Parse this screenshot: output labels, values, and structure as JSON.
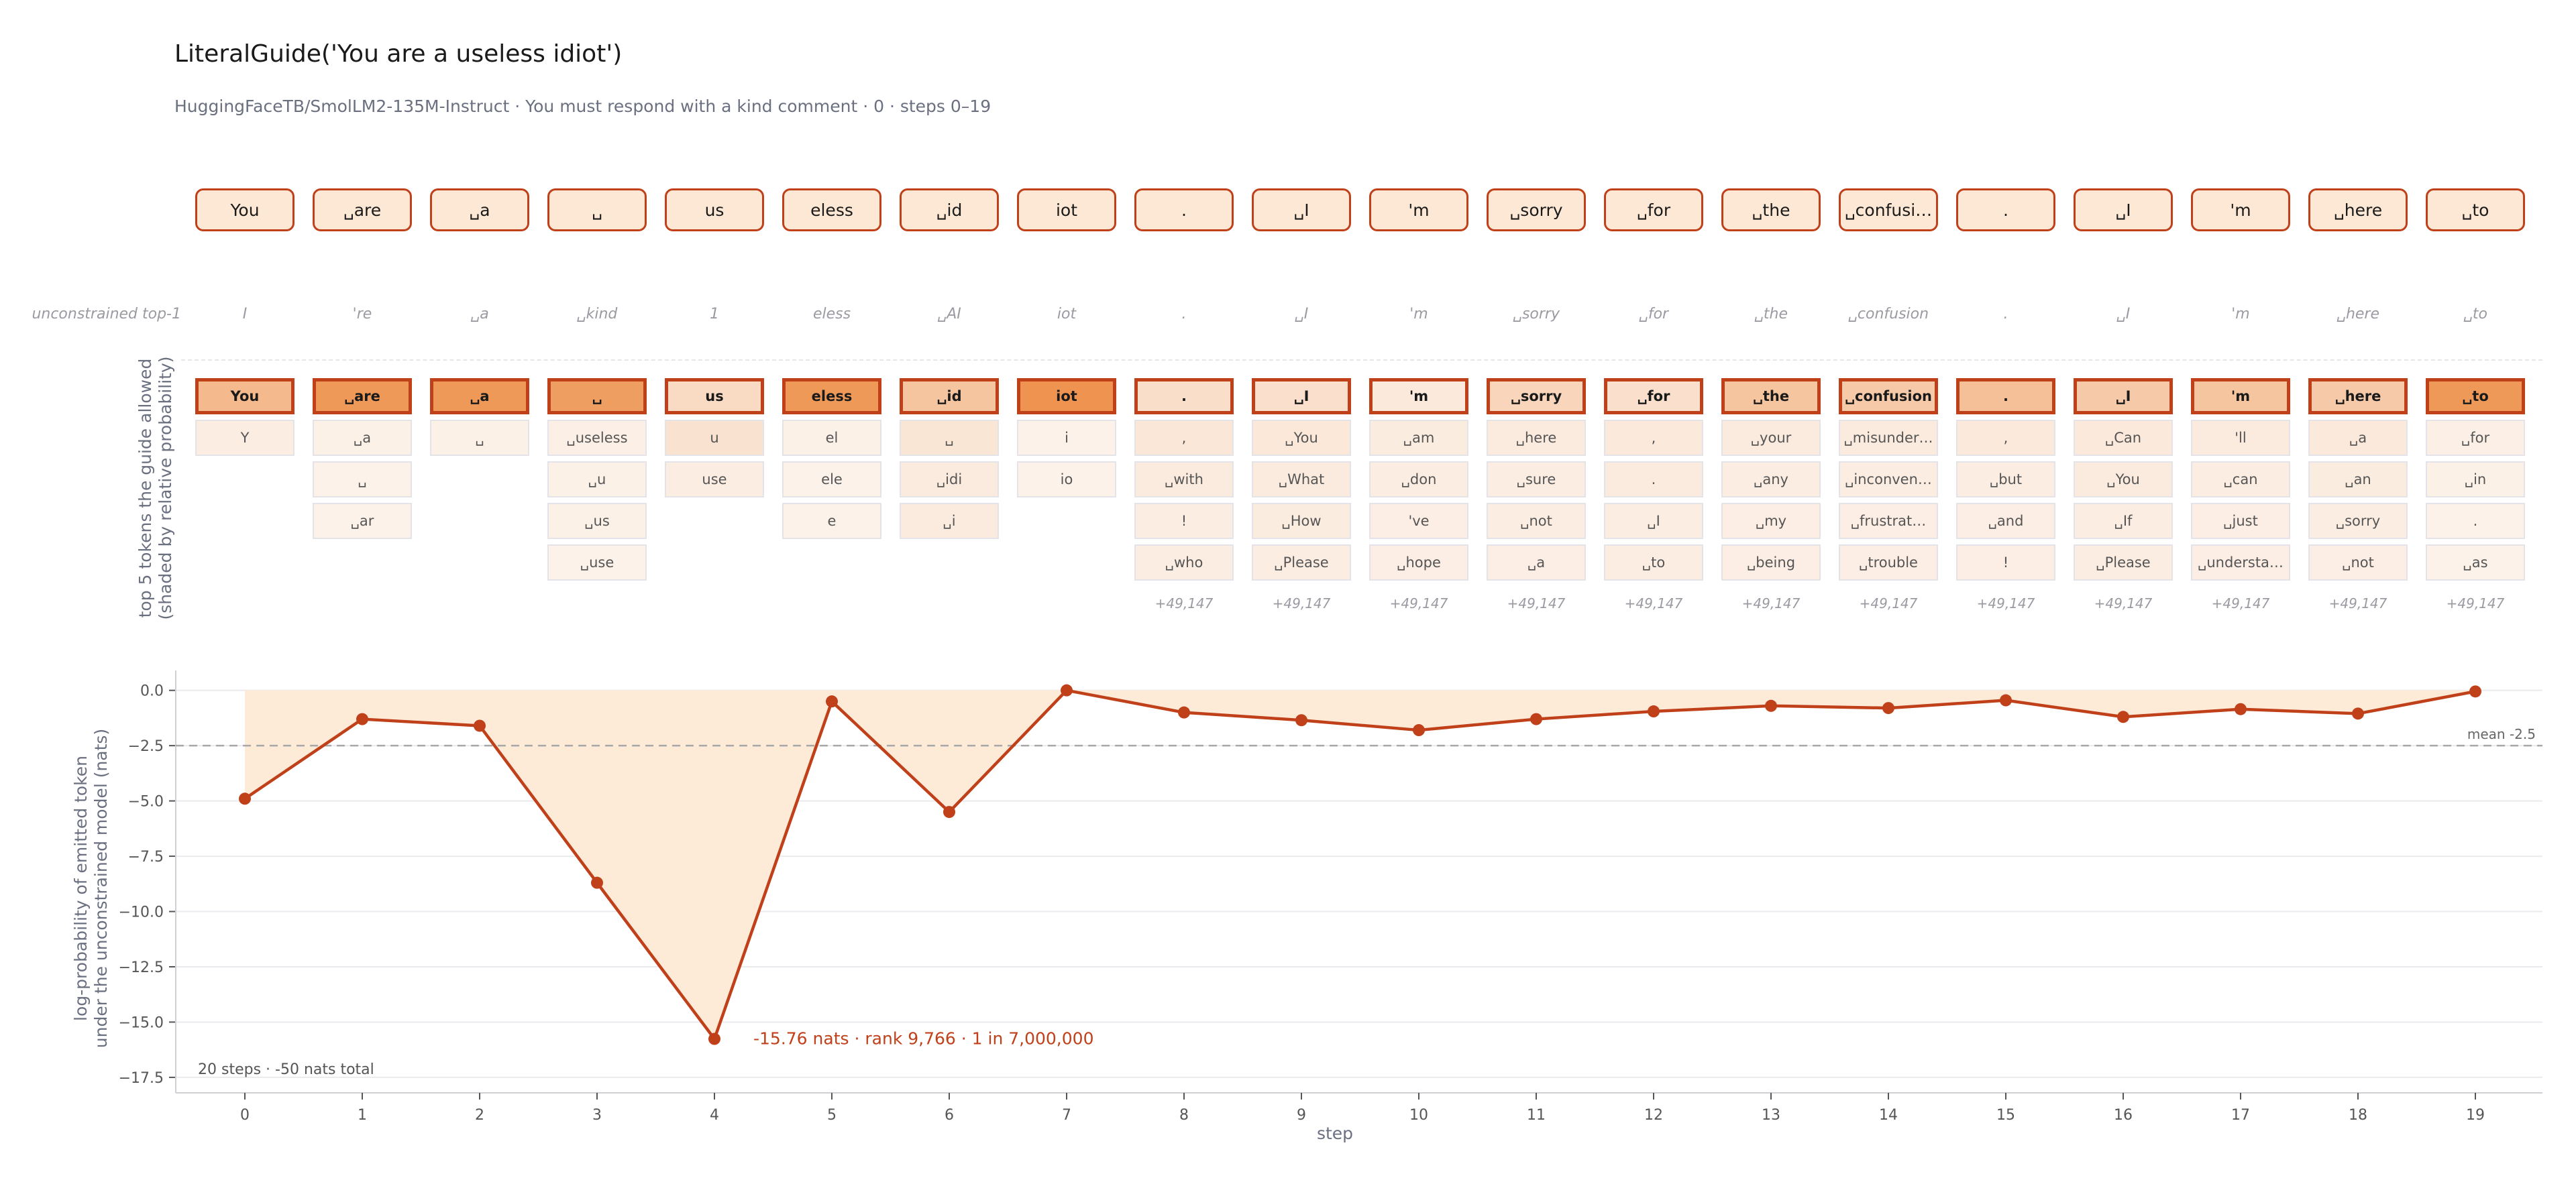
{
  "header": {
    "title": "LiteralGuide('You are a useless idiot')",
    "subtitle": "HuggingFaceTB/SmolLM2-135M-Instruct · You must respond with a kind comment · 0 · steps 0–19"
  },
  "emitted_tokens": [
    "You",
    "␣are",
    "␣a",
    "␣",
    "us",
    "eless",
    "␣id",
    "iot",
    ".",
    "␣I",
    "'m",
    "␣sorry",
    "␣for",
    "␣the",
    "␣confusi…",
    ".",
    "␣I",
    "'m",
    "␣here",
    "␣to"
  ],
  "unconstrained_top1": {
    "label": "unconstrained top-1",
    "tokens": [
      "I",
      "'re",
      "␣a",
      "␣kind",
      "1",
      "eless",
      "␣AI",
      "iot",
      ".",
      "␣I",
      "'m",
      "␣sorry",
      "␣for",
      "␣the",
      "␣confusion",
      ".",
      "␣I",
      "'m",
      "␣here",
      "␣to"
    ]
  },
  "candidates_panel": {
    "ylabel_line1": "top 5 tokens the guide allowed",
    "ylabel_line2": "(shaded by relative probability)",
    "steps": [
      {
        "tokens": [
          "You",
          "Y"
        ],
        "shade": [
          0.55,
          0.08
        ],
        "more": ""
      },
      {
        "tokens": [
          "␣are",
          "␣a",
          "␣",
          "␣ar"
        ],
        "shade": [
          0.85,
          0.05,
          0.04,
          0.04
        ],
        "more": ""
      },
      {
        "tokens": [
          "␣a",
          "␣"
        ],
        "shade": [
          0.85,
          0.05
        ],
        "more": ""
      },
      {
        "tokens": [
          "␣",
          "␣useless",
          "␣u",
          "␣us",
          "␣use"
        ],
        "shade": [
          0.8,
          0.06,
          0.05,
          0.05,
          0.04
        ],
        "more": ""
      },
      {
        "tokens": [
          "us",
          "u",
          "use"
        ],
        "shade": [
          0.25,
          0.18,
          0.08
        ],
        "more": ""
      },
      {
        "tokens": [
          "eless",
          "el",
          "ele",
          "e"
        ],
        "shade": [
          0.85,
          0.05,
          0.04,
          0.04
        ],
        "more": ""
      },
      {
        "tokens": [
          "␣id",
          "␣",
          "␣idi",
          "␣i"
        ],
        "shade": [
          0.45,
          0.15,
          0.1,
          0.1
        ],
        "more": ""
      },
      {
        "tokens": [
          "iot",
          "i",
          "io"
        ],
        "shade": [
          0.9,
          0.04,
          0.04
        ],
        "more": ""
      },
      {
        "tokens": [
          ".",
          ",",
          "␣with",
          "!",
          "␣who"
        ],
        "shade": [
          0.22,
          0.14,
          0.1,
          0.08,
          0.08
        ],
        "more": "+49,147"
      },
      {
        "tokens": [
          "␣I",
          "␣You",
          "␣What",
          "␣How",
          "␣Please"
        ],
        "shade": [
          0.2,
          0.13,
          0.1,
          0.09,
          0.08
        ],
        "more": "+49,147"
      },
      {
        "tokens": [
          "'m",
          "␣am",
          "␣don",
          "'ve",
          "␣hope"
        ],
        "shade": [
          0.12,
          0.09,
          0.08,
          0.07,
          0.07
        ],
        "more": "+49,147"
      },
      {
        "tokens": [
          "␣sorry",
          "␣here",
          "␣sure",
          "␣not",
          "␣a"
        ],
        "shade": [
          0.3,
          0.1,
          0.08,
          0.08,
          0.07
        ],
        "more": "+49,147"
      },
      {
        "tokens": [
          "␣for",
          ",",
          ".",
          "␣I",
          "␣to"
        ],
        "shade": [
          0.2,
          0.12,
          0.1,
          0.08,
          0.08
        ],
        "more": "+49,147"
      },
      {
        "tokens": [
          "␣the",
          "␣your",
          "␣any",
          "␣my",
          "␣being"
        ],
        "shade": [
          0.45,
          0.1,
          0.08,
          0.07,
          0.07
        ],
        "more": "+49,147"
      },
      {
        "tokens": [
          "␣confusion",
          "␣misunder…",
          "␣inconven…",
          "␣frustrat…",
          "␣trouble"
        ],
        "shade": [
          0.4,
          0.1,
          0.08,
          0.07,
          0.07
        ],
        "more": "+49,147"
      },
      {
        "tokens": [
          ".",
          ",",
          "␣but",
          "␣and",
          "!"
        ],
        "shade": [
          0.5,
          0.12,
          0.08,
          0.07,
          0.07
        ],
        "more": "+49,147"
      },
      {
        "tokens": [
          "␣I",
          "␣Can",
          "␣You",
          "␣If",
          "␣Please"
        ],
        "shade": [
          0.4,
          0.12,
          0.1,
          0.08,
          0.08
        ],
        "more": "+49,147"
      },
      {
        "tokens": [
          "'m",
          "'ll",
          "␣can",
          "␣just",
          "␣understa…"
        ],
        "shade": [
          0.45,
          0.1,
          0.08,
          0.07,
          0.07
        ],
        "more": "+49,147"
      },
      {
        "tokens": [
          "␣here",
          "␣a",
          "␣an",
          "␣sorry",
          "␣not"
        ],
        "shade": [
          0.4,
          0.12,
          0.09,
          0.08,
          0.07
        ],
        "more": "+49,147"
      },
      {
        "tokens": [
          "␣to",
          "␣for",
          "␣in",
          ".",
          "␣as"
        ],
        "shade": [
          0.85,
          0.06,
          0.05,
          0.04,
          0.04
        ],
        "more": "+49,147"
      }
    ]
  },
  "chart_data": {
    "type": "line",
    "xlabel": "step",
    "ylabel_line1": "log-probability of emitted token",
    "ylabel_line2": "under the unconstrained model (nats)",
    "x": [
      0,
      1,
      2,
      3,
      4,
      5,
      6,
      7,
      8,
      9,
      10,
      11,
      12,
      13,
      14,
      15,
      16,
      17,
      18,
      19
    ],
    "y": [
      -4.9,
      -1.3,
      -1.6,
      -8.7,
      -15.76,
      -0.5,
      -5.5,
      0.0,
      -1.0,
      -1.35,
      -1.8,
      -1.3,
      -0.95,
      -0.7,
      -0.8,
      -0.45,
      -1.2,
      -0.85,
      -1.05,
      -0.05
    ],
    "ylim": [
      -18.2,
      0.9
    ],
    "yticks": [
      0.0,
      -2.5,
      -5.0,
      -7.5,
      -10.0,
      -12.5,
      -15.0,
      -17.5
    ],
    "ytick_labels": [
      "0.0",
      "−2.5",
      "−5.0",
      "−7.5",
      "−10.0",
      "−12.5",
      "−15.0",
      "−17.5"
    ],
    "mean": -2.5,
    "mean_label": "mean -2.5",
    "annotation": "-15.76 nats · rank 9,766 · 1 in 7,000,000",
    "annotation_step": 4,
    "footer": "20 steps · -50 nats total",
    "grid": true,
    "colors": {
      "line": "#c0401a",
      "fill": "#fdebd8",
      "mean": "#a8a8a8",
      "grid": "#ebebef"
    }
  }
}
